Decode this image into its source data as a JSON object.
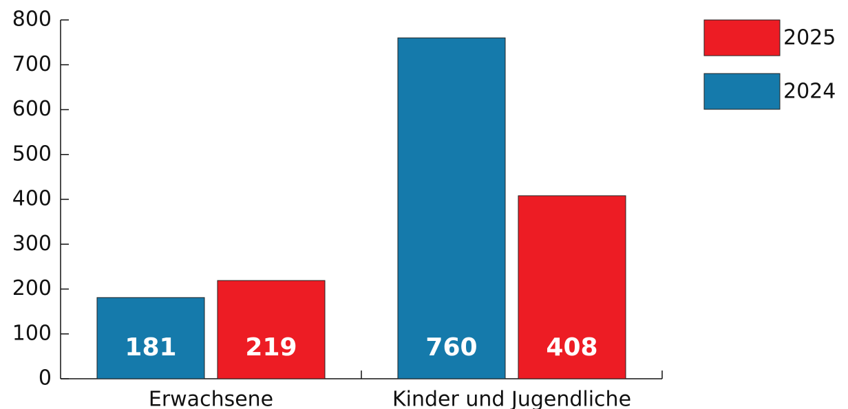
{
  "chart_data": {
    "type": "bar",
    "categories": [
      "Erwachsene",
      "Kinder und Jugendliche"
    ],
    "series": [
      {
        "name": "2024",
        "color": "#157aab",
        "values": [
          181,
          760
        ]
      },
      {
        "name": "2025",
        "color": "#ed1c24",
        "values": [
          219,
          408
        ]
      }
    ],
    "ylim": [
      0,
      800
    ],
    "yticks": [
      0,
      100,
      200,
      300,
      400,
      500,
      600,
      700,
      800
    ],
    "legend": "top-right",
    "grid": false
  }
}
